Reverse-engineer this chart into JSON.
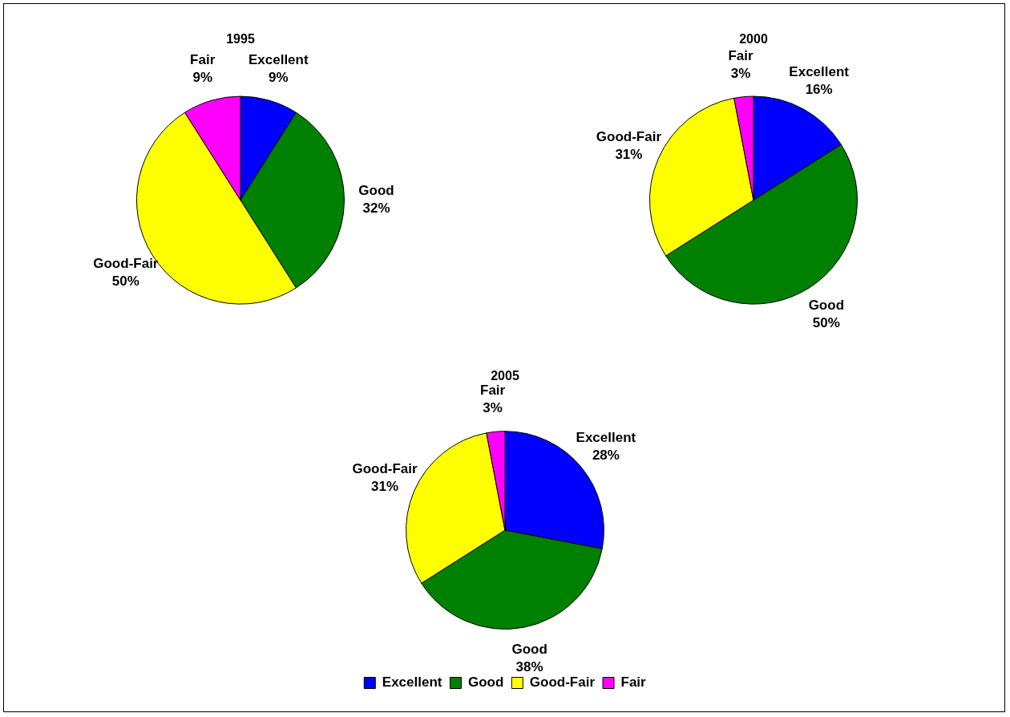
{
  "chart_data": [
    {
      "type": "pie",
      "title": "1995",
      "categories": [
        "Excellent",
        "Good",
        "Good-Fair",
        "Fair"
      ],
      "values": [
        9,
        32,
        50,
        9
      ],
      "value_labels": [
        "9%",
        "32%",
        "50%",
        "9%"
      ],
      "colors": [
        "#0000ff",
        "#008000",
        "#ffff00",
        "#ff00ff"
      ],
      "legend": false
    },
    {
      "type": "pie",
      "title": "2000",
      "categories": [
        "Excellent",
        "Good",
        "Good-Fair",
        "Fair"
      ],
      "values": [
        16,
        50,
        31,
        3
      ],
      "value_labels": [
        "16%",
        "50%",
        "31%",
        "3%"
      ],
      "colors": [
        "#0000ff",
        "#008000",
        "#ffff00",
        "#ff00ff"
      ],
      "legend": false
    },
    {
      "type": "pie",
      "title": "2005",
      "categories": [
        "Excellent",
        "Good",
        "Good-Fair",
        "Fair"
      ],
      "values": [
        28,
        38,
        31,
        3
      ],
      "value_labels": [
        "28%",
        "38%",
        "31%",
        "3%"
      ],
      "colors": [
        "#0000ff",
        "#008000",
        "#ffff00",
        "#ff00ff"
      ],
      "legend": "bottom"
    }
  ]
}
